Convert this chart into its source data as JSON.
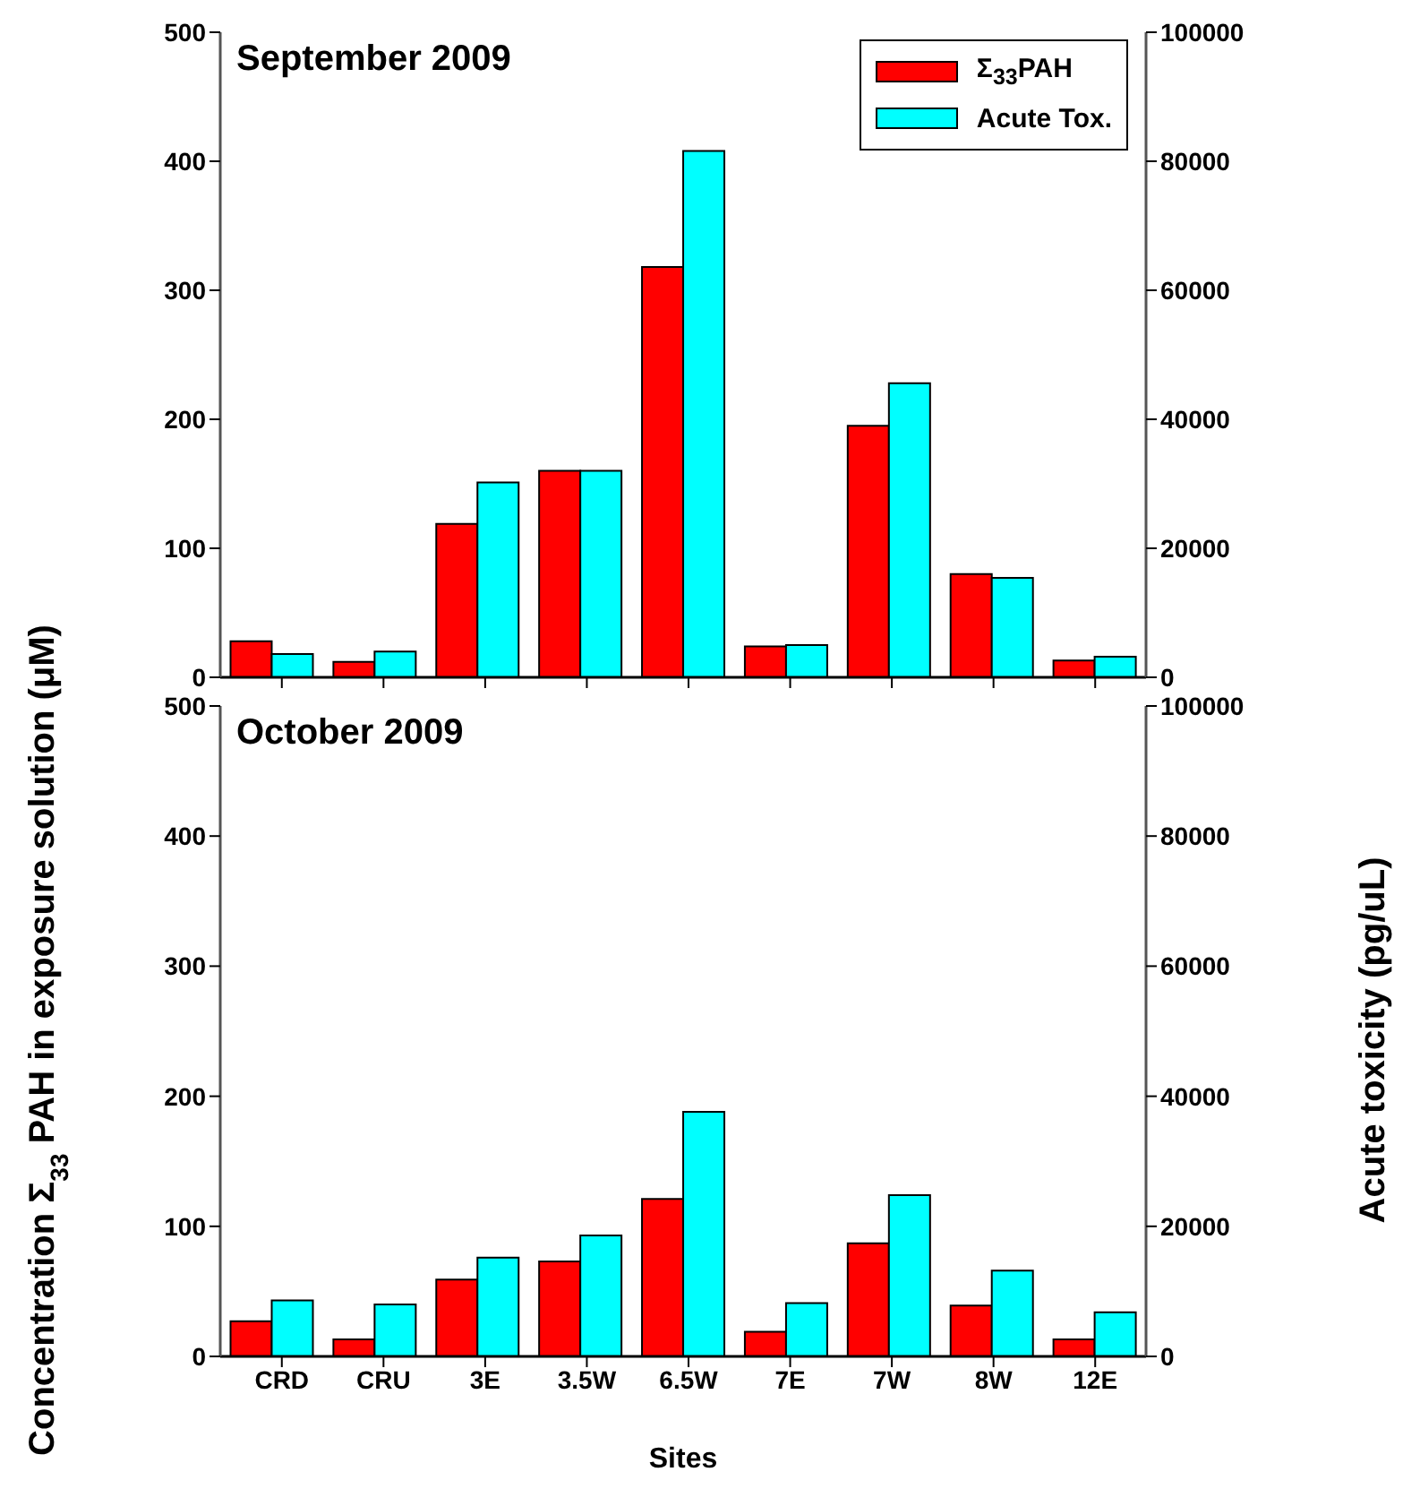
{
  "chart_data": [
    {
      "type": "bar",
      "title": "September 2009",
      "categories": [
        null,
        null,
        null,
        null,
        null,
        null,
        null,
        null,
        null
      ],
      "ylabel": "Concentration Σ$_{33}$ PAH in exposure solution (μM)",
      "y2label": "Acute toxicity (pg/uL)",
      "ylim": [
        0,
        500
      ],
      "yticks": [
        0,
        100,
        200,
        300,
        400,
        500
      ],
      "y2lim": [
        0,
        100000
      ],
      "y2ticks": [
        0,
        20000,
        40000,
        60000,
        80000,
        100000
      ],
      "tick_labels": "y",
      "legend": "top right",
      "grid": false,
      "series": [
        {
          "name": "Σ$_{33}$PAH",
          "color": "#ff0000",
          "values": [
            28,
            12,
            119,
            160,
            318,
            24,
            195,
            80,
            13
          ]
        },
        {
          "name": "Acute Tox.",
          "color": "#00ffff",
          "axis": "y2",
          "values": [
            3600,
            4000,
            30200,
            32000,
            81600,
            5000,
            45600,
            15400,
            3200
          ]
        }
      ]
    },
    {
      "type": "bar",
      "title": "October 2009",
      "categories": [
        "CRD",
        "CRU",
        "3E",
        "3.5W",
        "6.5W",
        "7E",
        "7W",
        "8W",
        "12E"
      ],
      "xlabel": "Sites",
      "ylim": [
        0,
        500
      ],
      "yticks": [
        0,
        100,
        200,
        300,
        400,
        500
      ],
      "y2lim": [
        0,
        100000
      ],
      "y2ticks": [
        0,
        20000,
        40000,
        60000,
        80000,
        100000
      ],
      "legend": false,
      "grid": false,
      "series": [
        {
          "color": "#ff0000",
          "values": [
            27,
            13,
            59,
            73,
            121,
            19,
            87,
            39,
            13
          ]
        },
        {
          "color": "#00ffff",
          "axis": "y2",
          "values": [
            8600,
            8000,
            15200,
            18600,
            37600,
            8200,
            24800,
            13200,
            6800
          ]
        }
      ]
    }
  ]
}
